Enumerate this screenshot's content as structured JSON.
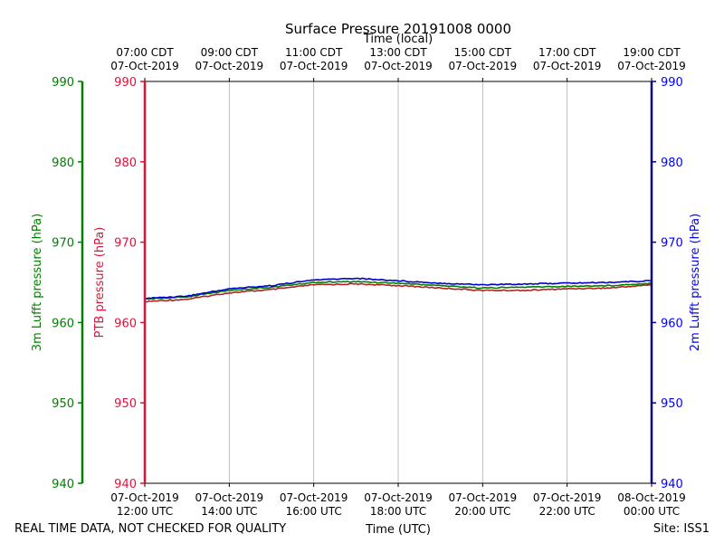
{
  "chart_data": {
    "type": "line",
    "title": "Surface Pressure 20191008 0000",
    "top_xlabel": "Time (local)",
    "xlabel": "Time (UTC)",
    "ylabel_left_outer": "3m Lufft pressure (hPa)",
    "ylabel_left_inner": "PTB pressure (hPa)",
    "ylabel_right": "2m Lufft pressure (hPa)",
    "ylim": [
      940,
      990
    ],
    "yticks": [
      940,
      950,
      960,
      970,
      980,
      990
    ],
    "x_range_hours_utc": [
      12,
      24
    ],
    "top_ticks": [
      {
        "t": 12,
        "line1": "07:00 CDT",
        "line2": "07-Oct-2019"
      },
      {
        "t": 14,
        "line1": "09:00 CDT",
        "line2": "07-Oct-2019"
      },
      {
        "t": 16,
        "line1": "11:00 CDT",
        "line2": "07-Oct-2019"
      },
      {
        "t": 18,
        "line1": "13:00 CDT",
        "line2": "07-Oct-2019"
      },
      {
        "t": 20,
        "line1": "15:00 CDT",
        "line2": "07-Oct-2019"
      },
      {
        "t": 22,
        "line1": "17:00 CDT",
        "line2": "07-Oct-2019"
      },
      {
        "t": 24,
        "line1": "19:00 CDT",
        "line2": "07-Oct-2019"
      }
    ],
    "bottom_ticks": [
      {
        "t": 12,
        "line1": "07-Oct-2019",
        "line2": "12:00 UTC"
      },
      {
        "t": 14,
        "line1": "07-Oct-2019",
        "line2": "14:00 UTC"
      },
      {
        "t": 16,
        "line1": "07-Oct-2019",
        "line2": "16:00 UTC"
      },
      {
        "t": 18,
        "line1": "07-Oct-2019",
        "line2": "18:00 UTC"
      },
      {
        "t": 20,
        "line1": "07-Oct-2019",
        "line2": "20:00 UTC"
      },
      {
        "t": 22,
        "line1": "07-Oct-2019",
        "line2": "22:00 UTC"
      },
      {
        "t": 24,
        "line1": "08-Oct-2019",
        "line2": "00:00 UTC"
      }
    ],
    "series": [
      {
        "name": "PTB pressure",
        "color": "#b22222",
        "x": [
          12,
          13,
          14,
          15,
          16,
          17,
          18,
          19,
          20,
          21,
          22,
          23,
          24
        ],
        "values": [
          962.6,
          962.9,
          963.7,
          964.1,
          964.7,
          964.8,
          964.6,
          964.3,
          964.0,
          964.0,
          964.2,
          964.3,
          964.7
        ]
      },
      {
        "name": "3m Lufft pressure",
        "color": "#008000",
        "x": [
          12,
          13,
          14,
          15,
          16,
          17,
          18,
          19,
          20,
          21,
          22,
          23,
          24
        ],
        "values": [
          962.9,
          963.2,
          964.0,
          964.4,
          965.0,
          965.1,
          964.9,
          964.6,
          964.3,
          964.4,
          964.5,
          964.6,
          964.9
        ]
      },
      {
        "name": "2m Lufft pressure",
        "color": "#0000cd",
        "x": [
          12,
          13,
          14,
          15,
          16,
          17,
          18,
          19,
          20,
          21,
          22,
          23,
          24
        ],
        "values": [
          963.0,
          963.3,
          964.2,
          964.6,
          965.3,
          965.5,
          965.2,
          964.9,
          964.7,
          964.8,
          964.9,
          965.0,
          965.2
        ]
      }
    ]
  },
  "colors": {
    "axis_left_outer": "#008000",
    "axis_left_inner": "#dc143c",
    "axis_right": "#00008b",
    "tick_right_text": "#0000ff",
    "grid": "#b0b0b0"
  },
  "footer": {
    "left_note": "REAL TIME DATA, NOT CHECKED FOR QUALITY",
    "site": "Site: ISS1"
  }
}
